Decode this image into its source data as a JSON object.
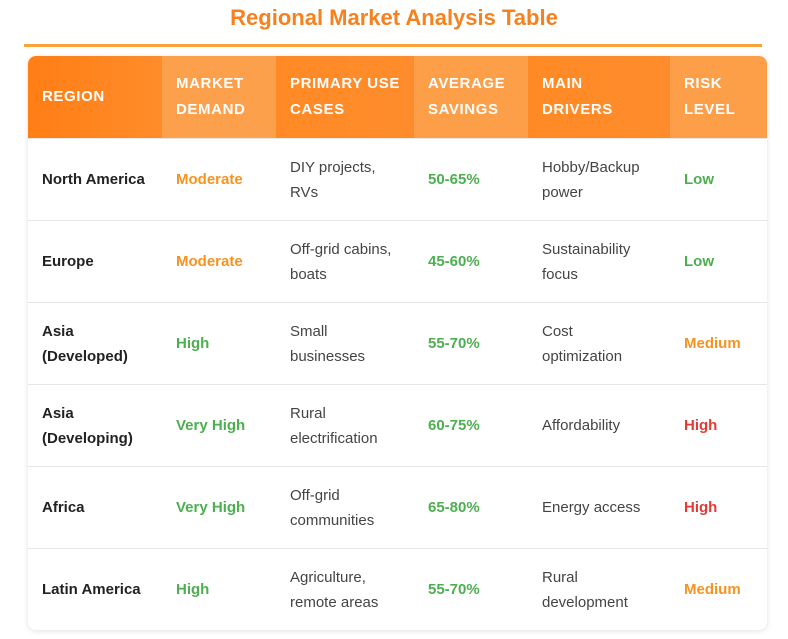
{
  "title": "Regional Market Analysis Table",
  "colors": {
    "accent": "#f7811f",
    "green": "#4caf50",
    "orange": "#f7931e",
    "red": "#e53935"
  },
  "headers": [
    "REGION",
    "MARKET DEMAND",
    "PRIMARY USE CASES",
    "AVERAGE SAVINGS",
    "MAIN DRIVERS",
    "RISK LEVEL"
  ],
  "rows": [
    {
      "region": "North America",
      "demand": "Moderate",
      "demand_color": "orange",
      "use_cases": "DIY projects, RVs",
      "savings": "50-65%",
      "drivers": "Hobby/Backup power",
      "risk": "Low",
      "risk_color": "green"
    },
    {
      "region": "Europe",
      "demand": "Moderate",
      "demand_color": "orange",
      "use_cases": "Off-grid cabins, boats",
      "savings": "45-60%",
      "drivers": "Sustainability focus",
      "risk": "Low",
      "risk_color": "green"
    },
    {
      "region": "Asia (Developed)",
      "demand": "High",
      "demand_color": "green",
      "use_cases": "Small businesses",
      "savings": "55-70%",
      "drivers": "Cost optimization",
      "risk": "Medium",
      "risk_color": "orange"
    },
    {
      "region": "Asia (Developing)",
      "demand": "Very High",
      "demand_color": "green",
      "use_cases": "Rural electrification",
      "savings": "60-75%",
      "drivers": "Affordability",
      "risk": "High",
      "risk_color": "red"
    },
    {
      "region": "Africa",
      "demand": "Very High",
      "demand_color": "green",
      "use_cases": "Off-grid communities",
      "savings": "65-80%",
      "drivers": "Energy access",
      "risk": "High",
      "risk_color": "red"
    },
    {
      "region": "Latin America",
      "demand": "High",
      "demand_color": "green",
      "use_cases": "Agriculture, remote areas",
      "savings": "55-70%",
      "drivers": "Rural development",
      "risk": "Medium",
      "risk_color": "orange"
    }
  ]
}
